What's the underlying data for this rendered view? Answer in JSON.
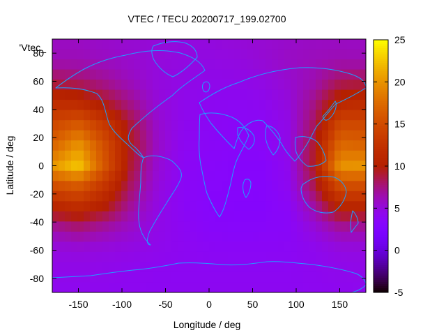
{
  "chart_data": {
    "type": "heatmap",
    "title": "VTEC / TECU 20200717_199.02700",
    "xlabel": "Longitude / deg",
    "ylabel": "Latitude / deg",
    "key_label": "'Vtec_",
    "xlim": [
      -180,
      180
    ],
    "ylim": [
      -90,
      90
    ],
    "x_ticks": [
      -150,
      -100,
      -50,
      0,
      50,
      100,
      150
    ],
    "y_ticks": [
      -80,
      -60,
      -40,
      -20,
      0,
      20,
      40,
      60,
      80
    ],
    "colorbar": {
      "min": -5,
      "max": 25,
      "ticks": [
        -5,
        0,
        5,
        10,
        15,
        20,
        25
      ],
      "palette": "black-blue-purple-red-orange-yellow"
    },
    "grid": false,
    "coastline_color": "#1ea0ff",
    "field_description": "VTEC values across longitude and latitude",
    "data_grid": {
      "longitudes": [
        -180,
        -150,
        -120,
        -90,
        -60,
        -30,
        0,
        30,
        60,
        90,
        120,
        150,
        180
      ],
      "latitudes": [
        90,
        75,
        60,
        45,
        30,
        15,
        0,
        -15,
        -30,
        -45,
        -60,
        -75,
        -90
      ],
      "values": [
        [
          5.8,
          5.8,
          5.6,
          5.4,
          5.2,
          5.0,
          5.0,
          5.2,
          5.4,
          5.6,
          5.8,
          5.8,
          5.8
        ],
        [
          6.2,
          6.2,
          5.9,
          5.5,
          5.1,
          4.9,
          4.8,
          4.9,
          5.3,
          5.8,
          6.1,
          6.3,
          6.2
        ],
        [
          8.5,
          8.0,
          7.1,
          6.0,
          5.0,
          4.7,
          4.5,
          4.5,
          4.8,
          5.4,
          6.3,
          8.2,
          8.5
        ],
        [
          11.5,
          11.2,
          9.3,
          7.2,
          5.2,
          4.4,
          4.1,
          4.0,
          4.2,
          5.0,
          7.3,
          11.0,
          11.5
        ],
        [
          14.5,
          16.0,
          13.0,
          8.8,
          5.6,
          4.3,
          3.9,
          3.7,
          3.8,
          4.6,
          8.1,
          14.6,
          14.5
        ],
        [
          16.8,
          20.0,
          15.2,
          9.5,
          5.8,
          4.1,
          3.7,
          3.5,
          3.6,
          4.6,
          9.0,
          17.2,
          16.8
        ],
        [
          20.0,
          22.5,
          15.8,
          9.0,
          5.4,
          3.9,
          3.5,
          3.3,
          3.3,
          4.3,
          9.3,
          19.8,
          20.0
        ],
        [
          14.8,
          16.0,
          12.6,
          8.0,
          5.1,
          3.8,
          3.4,
          3.3,
          3.2,
          4.1,
          8.4,
          14.8,
          14.8
        ],
        [
          10.5,
          11.5,
          9.8,
          6.8,
          4.8,
          3.8,
          3.3,
          3.2,
          3.2,
          3.7,
          6.5,
          10.5,
          10.5
        ],
        [
          6.5,
          7.4,
          6.5,
          5.6,
          4.6,
          4.0,
          3.5,
          3.4,
          3.5,
          3.6,
          5.0,
          6.6,
          6.5
        ],
        [
          4.9,
          5.0,
          4.9,
          4.7,
          4.4,
          4.1,
          3.9,
          3.8,
          3.8,
          3.9,
          4.2,
          4.8,
          4.9
        ],
        [
          4.5,
          4.5,
          4.4,
          4.2,
          4.1,
          4.0,
          4.0,
          4.0,
          4.0,
          4.0,
          4.2,
          4.4,
          4.5
        ],
        [
          4.2,
          4.2,
          4.2,
          4.1,
          4.1,
          4.1,
          4.1,
          4.1,
          4.1,
          4.1,
          4.1,
          4.2,
          4.2
        ]
      ]
    }
  }
}
